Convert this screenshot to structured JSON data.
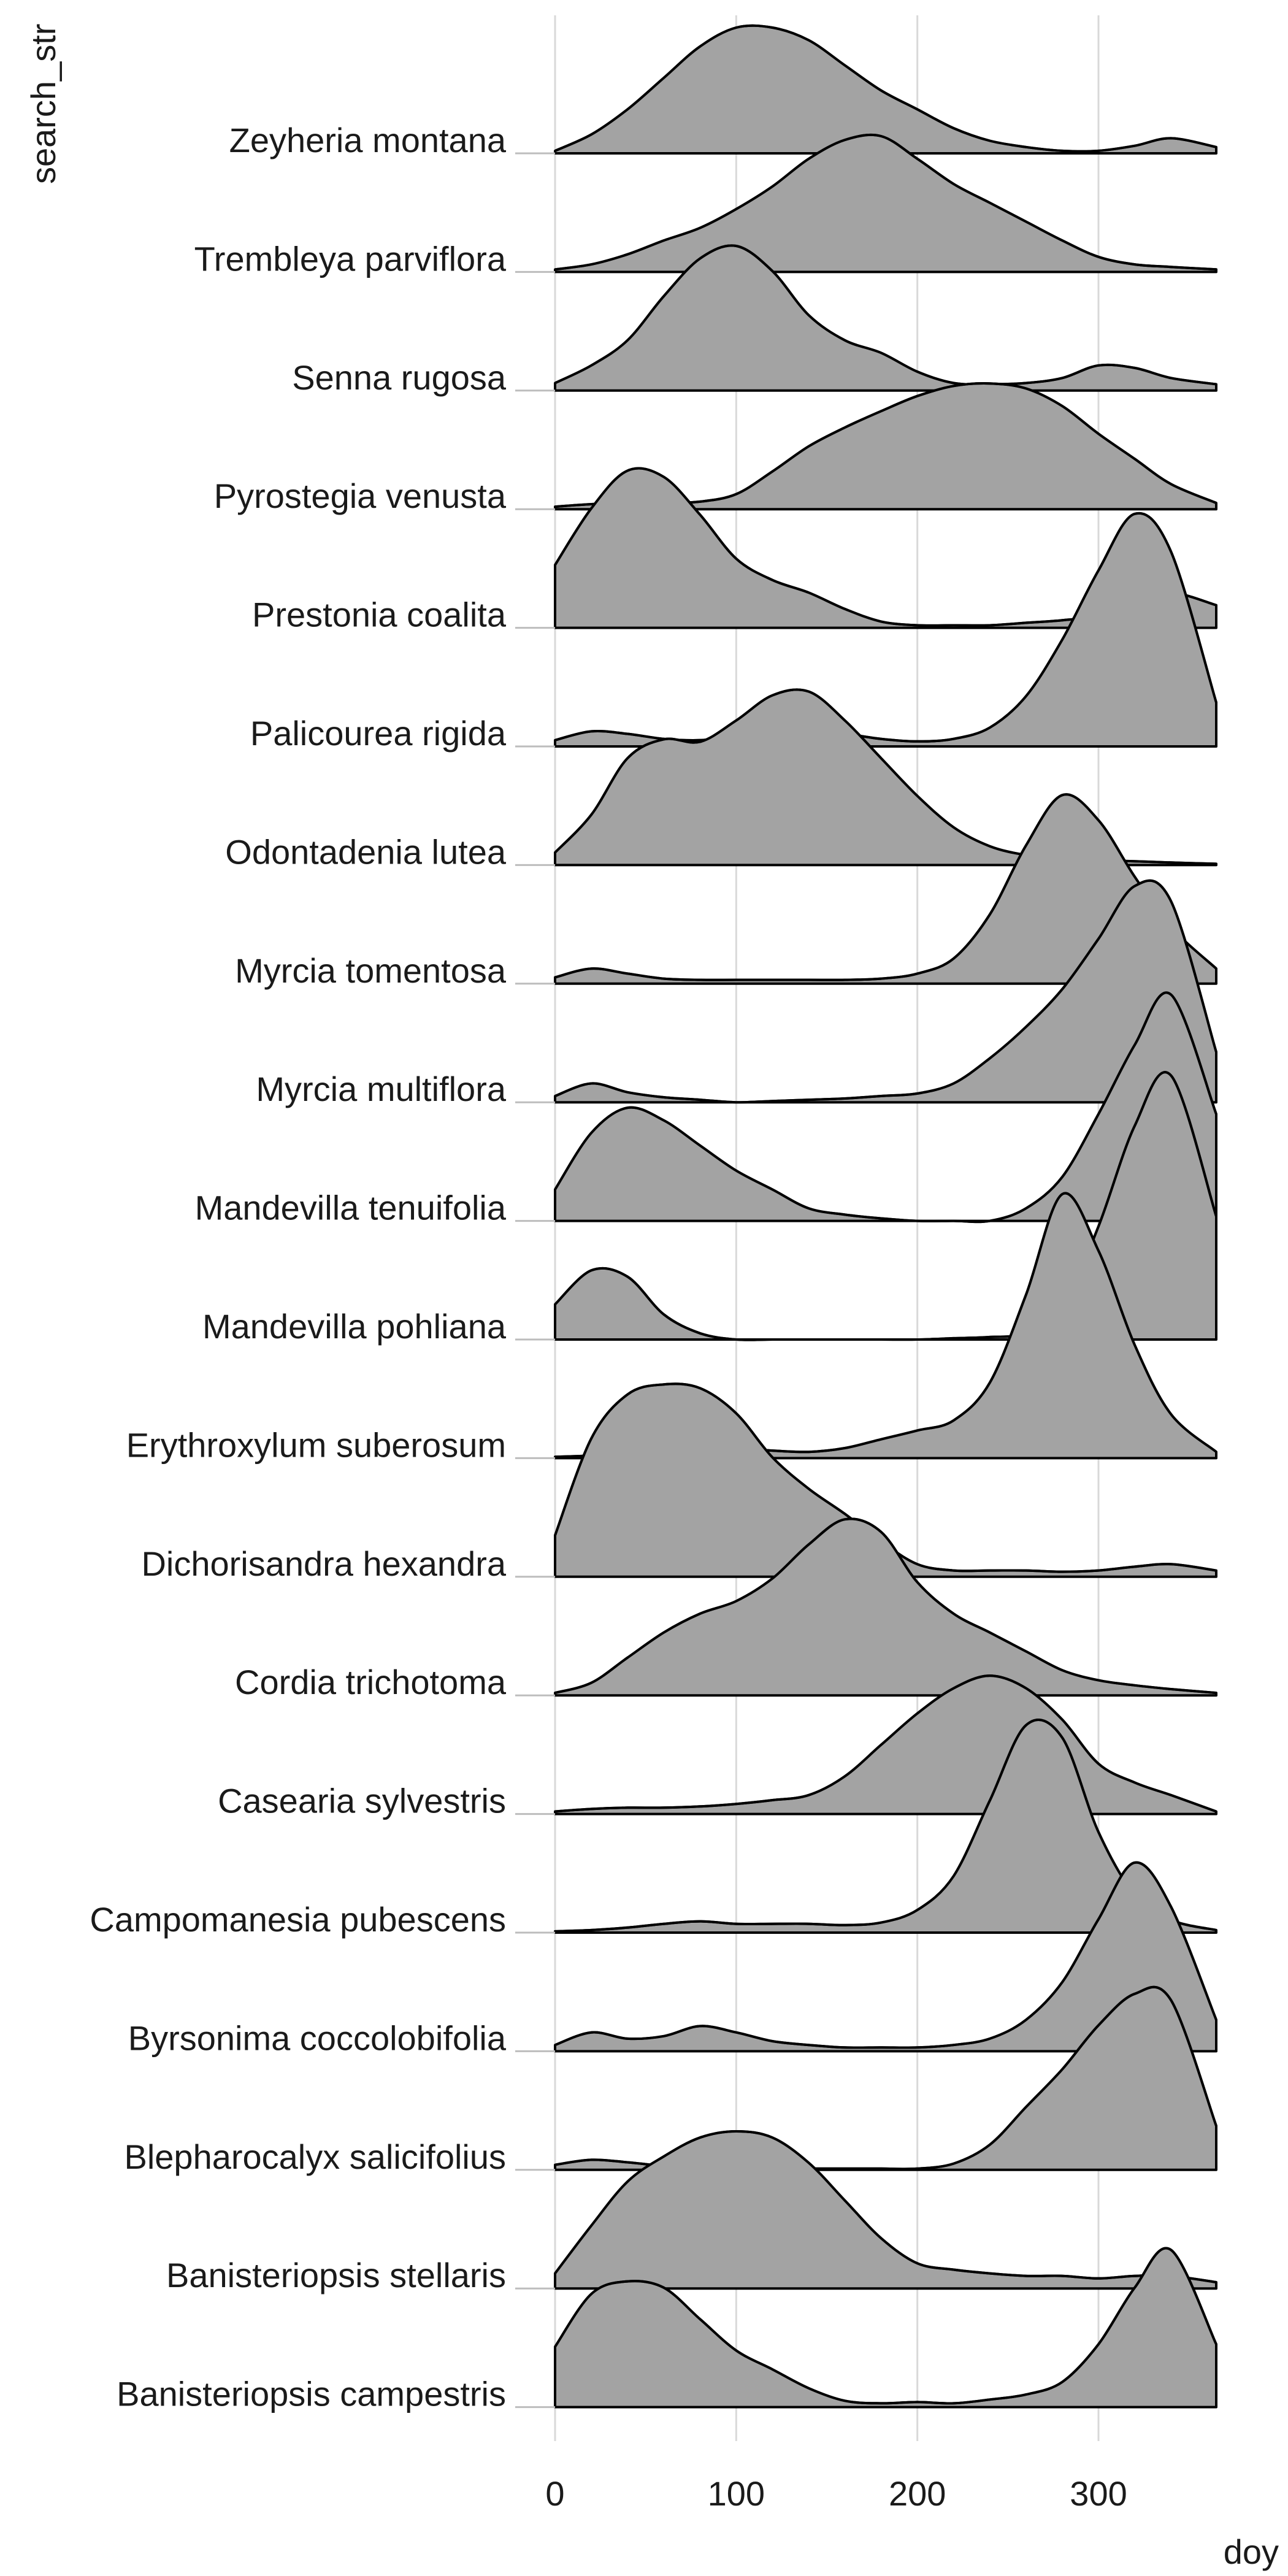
{
  "chart_data": {
    "type": "ridgeline",
    "xlabel": "doy",
    "ylabel": "search_str",
    "xlim": [
      0,
      365
    ],
    "x_ticks": [
      "0",
      "100",
      "200",
      "300"
    ],
    "x_tick_values": [
      0,
      100,
      200,
      300
    ],
    "fill_color": "#a3a3a3",
    "line_color": "#000000",
    "x": [
      0,
      20,
      40,
      60,
      80,
      100,
      120,
      140,
      160,
      180,
      200,
      220,
      240,
      260,
      280,
      300,
      320,
      340,
      365
    ],
    "series": [
      {
        "name": "Zeyheria montana",
        "values": [
          0.02,
          0.15,
          0.35,
          0.6,
          0.85,
          1.0,
          1.0,
          0.9,
          0.7,
          0.5,
          0.35,
          0.2,
          0.1,
          0.05,
          0.02,
          0.02,
          0.06,
          0.12,
          0.05
        ]
      },
      {
        "name": "Trembleya parviflora",
        "values": [
          0.02,
          0.06,
          0.14,
          0.25,
          0.35,
          0.5,
          0.68,
          0.9,
          1.05,
          1.08,
          0.9,
          0.7,
          0.55,
          0.4,
          0.25,
          0.12,
          0.06,
          0.04,
          0.02
        ]
      },
      {
        "name": "Senna rugosa",
        "values": [
          0.06,
          0.2,
          0.4,
          0.75,
          1.05,
          1.15,
          0.95,
          0.6,
          0.4,
          0.3,
          0.15,
          0.06,
          0.05,
          0.06,
          0.1,
          0.2,
          0.18,
          0.1,
          0.05
        ]
      },
      {
        "name": "Pyrostegia venusta",
        "values": [
          0.02,
          0.04,
          0.05,
          0.05,
          0.06,
          0.12,
          0.3,
          0.5,
          0.65,
          0.78,
          0.9,
          0.98,
          1.0,
          0.96,
          0.82,
          0.6,
          0.4,
          0.2,
          0.05
        ]
      },
      {
        "name": "Prestonia coalita",
        "values": [
          0.5,
          0.95,
          1.25,
          1.2,
          0.9,
          0.55,
          0.38,
          0.28,
          0.15,
          0.05,
          0.02,
          0.02,
          0.02,
          0.04,
          0.06,
          0.1,
          0.2,
          0.28,
          0.18
        ]
      },
      {
        "name": "Palicourea rigida",
        "values": [
          0.05,
          0.12,
          0.1,
          0.06,
          0.05,
          0.08,
          0.12,
          0.12,
          0.1,
          0.06,
          0.04,
          0.06,
          0.15,
          0.4,
          0.85,
          1.4,
          1.85,
          1.55,
          0.35
        ]
      },
      {
        "name": "Odontadenia lutea",
        "values": [
          0.1,
          0.4,
          0.85,
          1.0,
          0.98,
          1.15,
          1.35,
          1.38,
          1.15,
          0.85,
          0.55,
          0.3,
          0.15,
          0.08,
          0.06,
          0.04,
          0.03,
          0.02,
          0.01
        ]
      },
      {
        "name": "Myrcia tomentosa",
        "values": [
          0.05,
          0.12,
          0.08,
          0.04,
          0.03,
          0.03,
          0.03,
          0.03,
          0.03,
          0.04,
          0.08,
          0.2,
          0.55,
          1.1,
          1.5,
          1.3,
          0.85,
          0.45,
          0.12
        ]
      },
      {
        "name": "Myrcia multiflora",
        "values": [
          0.05,
          0.15,
          0.08,
          0.04,
          0.02,
          0.0,
          0.01,
          0.02,
          0.03,
          0.05,
          0.07,
          0.15,
          0.35,
          0.6,
          0.9,
          1.3,
          1.72,
          1.6,
          0.4
        ]
      },
      {
        "name": "Mandevilla tenuifolia",
        "values": [
          0.25,
          0.7,
          0.9,
          0.8,
          0.6,
          0.4,
          0.25,
          0.1,
          0.05,
          0.02,
          0.0,
          0.0,
          0.0,
          0.1,
          0.35,
          0.85,
          1.4,
          1.8,
          0.85
        ]
      },
      {
        "name": "Mandevilla pohliana",
        "values": [
          0.28,
          0.55,
          0.5,
          0.2,
          0.05,
          0.0,
          0.0,
          0.0,
          0.0,
          0.0,
          0.0,
          0.01,
          0.02,
          0.05,
          0.25,
          0.9,
          1.7,
          2.1,
          0.98
        ]
      },
      {
        "name": "Erythroxylum suberosum",
        "values": [
          0.01,
          0.02,
          0.03,
          0.04,
          0.06,
          0.08,
          0.06,
          0.05,
          0.08,
          0.15,
          0.22,
          0.3,
          0.6,
          1.3,
          2.1,
          1.65,
          0.9,
          0.35,
          0.05
        ]
      },
      {
        "name": "Dichorisandra hexandra",
        "values": [
          0.33,
          1.1,
          1.45,
          1.53,
          1.5,
          1.3,
          0.95,
          0.7,
          0.5,
          0.28,
          0.1,
          0.05,
          0.05,
          0.05,
          0.04,
          0.05,
          0.08,
          0.1,
          0.05
        ]
      },
      {
        "name": "Cordia trichotoma",
        "values": [
          0.02,
          0.1,
          0.3,
          0.5,
          0.65,
          0.75,
          0.93,
          1.2,
          1.4,
          1.3,
          0.9,
          0.65,
          0.5,
          0.35,
          0.2,
          0.12,
          0.08,
          0.05,
          0.02
        ]
      },
      {
        "name": "Casearia sylvestris",
        "values": [
          0.02,
          0.04,
          0.05,
          0.05,
          0.06,
          0.08,
          0.11,
          0.15,
          0.3,
          0.55,
          0.8,
          1.0,
          1.1,
          1.0,
          0.75,
          0.4,
          0.25,
          0.15,
          0.02
        ]
      },
      {
        "name": "Campomanesia pubescens",
        "values": [
          0.01,
          0.02,
          0.04,
          0.07,
          0.09,
          0.07,
          0.07,
          0.07,
          0.06,
          0.08,
          0.18,
          0.45,
          1.05,
          1.65,
          1.55,
          0.8,
          0.3,
          0.1,
          0.02
        ]
      },
      {
        "name": "Byrsonima coccolobifolia",
        "values": [
          0.05,
          0.15,
          0.1,
          0.12,
          0.2,
          0.15,
          0.08,
          0.05,
          0.03,
          0.03,
          0.03,
          0.05,
          0.1,
          0.25,
          0.55,
          1.05,
          1.5,
          1.15,
          0.25
        ]
      },
      {
        "name": "Blepharocalyx salicifolius",
        "values": [
          0.04,
          0.08,
          0.06,
          0.03,
          0.01,
          0.01,
          0.01,
          0.01,
          0.01,
          0.01,
          0.01,
          0.05,
          0.2,
          0.5,
          0.8,
          1.15,
          1.4,
          1.35,
          0.35
        ]
      },
      {
        "name": "Banisteriopsis stellaris",
        "values": [
          0.12,
          0.5,
          0.85,
          1.05,
          1.2,
          1.25,
          1.2,
          1.0,
          0.7,
          0.4,
          0.2,
          0.15,
          0.12,
          0.1,
          0.1,
          0.08,
          0.1,
          0.1,
          0.05
        ]
      },
      {
        "name": "Banisteriopsis campestris",
        "values": [
          0.48,
          0.9,
          1.0,
          0.95,
          0.7,
          0.45,
          0.3,
          0.15,
          0.05,
          0.03,
          0.04,
          0.03,
          0.06,
          0.1,
          0.2,
          0.5,
          0.95,
          1.25,
          0.5
        ]
      }
    ]
  }
}
